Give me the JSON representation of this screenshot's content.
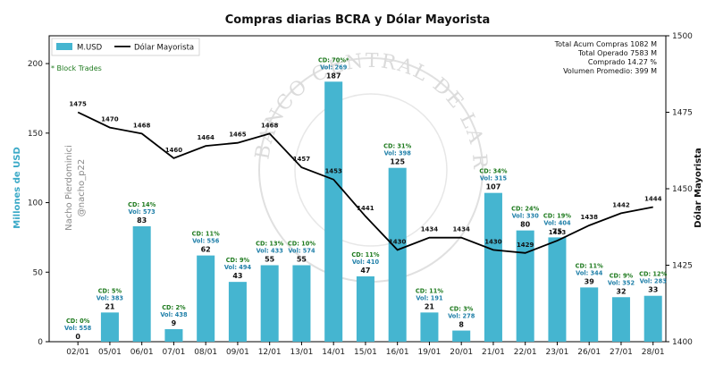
{
  "chart_data": {
    "type": "bar",
    "title": "Compras diarias BCRA y Dólar Mayorista",
    "categories": [
      "02/01",
      "05/01",
      "06/01",
      "07/01",
      "08/01",
      "09/01",
      "12/01",
      "13/01",
      "14/01",
      "15/01",
      "16/01",
      "19/01",
      "20/01",
      "21/01",
      "22/01",
      "23/01",
      "26/01",
      "27/01",
      "28/01"
    ],
    "series": [
      {
        "name": "M.USD",
        "type": "bar",
        "axis": "left",
        "color": "#45b5d0",
        "values": [
          0,
          21,
          83,
          9,
          62,
          43,
          55,
          55,
          187,
          47,
          125,
          21,
          8,
          107,
          80,
          75,
          39,
          32,
          33
        ]
      },
      {
        "name": "Dólar Mayorista",
        "type": "line",
        "axis": "right",
        "color": "#000000",
        "values": [
          1475,
          1470,
          1468,
          1460,
          1464,
          1465,
          1468,
          1457,
          1453,
          1441,
          1430,
          1434,
          1434,
          1430,
          1429,
          1433,
          1438,
          1442,
          1444
        ]
      }
    ],
    "bar_value_labels": [
      "0",
      "21",
      "83",
      "9",
      "62",
      "43",
      "55",
      "55",
      "187",
      "47",
      "125",
      "21",
      "8",
      "107",
      "80",
      "75",
      "39",
      "32",
      "33"
    ],
    "line_value_labels": [
      "1475",
      "1470",
      "1468",
      "1460",
      "1464",
      "1465",
      "1468",
      "1457",
      "1453",
      "1441",
      "1430",
      "1434",
      "1434",
      "1430",
      "1429",
      "1433",
      "1438",
      "1442",
      "1444"
    ],
    "cd_labels": [
      "CD: 0%",
      "CD: 5%",
      "CD: 14%",
      "CD: 2%",
      "CD: 11%",
      "CD: 9%",
      "CD: 13%",
      "CD: 10%",
      "CD: 70%*",
      "CD: 11%",
      "CD: 31%",
      "CD: 11%",
      "CD: 3%",
      "CD: 34%",
      "CD: 24%",
      "CD: 19%",
      "CD: 11%",
      "CD: 9%",
      "CD: 12%"
    ],
    "vol_labels": [
      "Vol: 558",
      "Vol: 383",
      "Vol: 573",
      "Vol: 438",
      "Vol: 556",
      "Vol: 494",
      "Vol: 433",
      "Vol: 574",
      "Vol: 269",
      "Vol: 410",
      "Vol: 398",
      "Vol: 191",
      "Vol: 278",
      "Vol: 315",
      "Vol: 330",
      "Vol: 404",
      "Vol: 344",
      "Vol: 352",
      "Vol: 283"
    ],
    "ylabel": "Millones de USD",
    "ylim": [
      0,
      220
    ],
    "yticks": [
      0,
      50,
      100,
      150,
      200
    ],
    "ylabel_right": "Dólar Mayorista",
    "ylim_right": [
      1400,
      1500
    ],
    "yticks_right": [
      1400,
      1425,
      1450,
      1475,
      1500
    ],
    "legend": [
      "M.USD",
      "Dólar Mayorista"
    ],
    "legend_position": "top-left",
    "annotation_block": "* Block Trades",
    "stats": [
      "Total Acum Compras 1082 M",
      "Total Operado 7583 M",
      "Comprado 14.27 %",
      "Volumen Promedio: 399 M"
    ],
    "watermark": [
      "Nacho Pierdominici",
      "@nacho_p22"
    ],
    "background_seal_text": "BANCO CENTRAL DE LA REPUBLICA ARGENTINA",
    "grid": false
  }
}
